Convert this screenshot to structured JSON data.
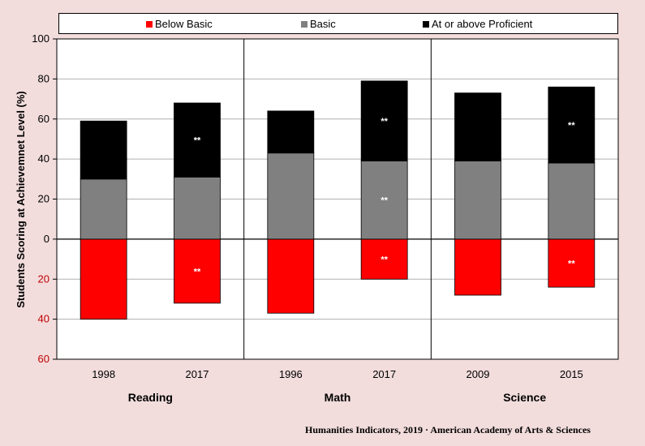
{
  "chart_data": {
    "type": "bar",
    "stacked": true,
    "ylabel": "Students Scoring at Achievemnet Level (%)",
    "ylim": [
      -60,
      100
    ],
    "yticks": [
      -60,
      -40,
      -20,
      0,
      20,
      40,
      60,
      80,
      100
    ],
    "ytick_labels": [
      "60",
      "40",
      "20",
      "0",
      "20",
      "40",
      "60",
      "80",
      "100"
    ],
    "ytick_colors": [
      "#c00000",
      "#c00000",
      "#c00000",
      "#000000",
      "#000000",
      "#000000",
      "#000000",
      "#000000",
      "#000000"
    ],
    "grid": true,
    "groups": [
      {
        "name": "Reading",
        "categories": [
          "1998",
          "2017"
        ]
      },
      {
        "name": "Math",
        "categories": [
          "1996",
          "2017"
        ]
      },
      {
        "name": "Science",
        "categories": [
          "2009",
          "2015"
        ]
      }
    ],
    "categories": [
      "1998",
      "2017",
      "1996",
      "2017",
      "2009",
      "2015"
    ],
    "series": [
      {
        "name": "Below Basic",
        "color": "#ff0000",
        "values": [
          -40,
          -32,
          -37,
          -20,
          -28,
          -24
        ]
      },
      {
        "name": "Basic",
        "color": "#808080",
        "values": [
          30,
          31,
          43,
          39,
          39,
          38
        ]
      },
      {
        "name": "At or above Proficient",
        "color": "#000000",
        "values": [
          29,
          37,
          21,
          40,
          34,
          38
        ]
      }
    ],
    "annotations": [
      {
        "category_index": 1,
        "series": "At or above Proficient",
        "text": "**"
      },
      {
        "category_index": 1,
        "series": "Below Basic",
        "text": "**"
      },
      {
        "category_index": 3,
        "series": "At or above Proficient",
        "text": "**"
      },
      {
        "category_index": 3,
        "series": "Basic",
        "text": "**"
      },
      {
        "category_index": 3,
        "series": "Below Basic",
        "text": "**"
      },
      {
        "category_index": 5,
        "series": "At or above Proficient",
        "text": "**"
      },
      {
        "category_index": 5,
        "series": "Below Basic",
        "text": "**"
      }
    ],
    "legend_position": "top"
  },
  "footer": "Humanities Indicators, 2019 · American Academy of Arts & Sciences"
}
